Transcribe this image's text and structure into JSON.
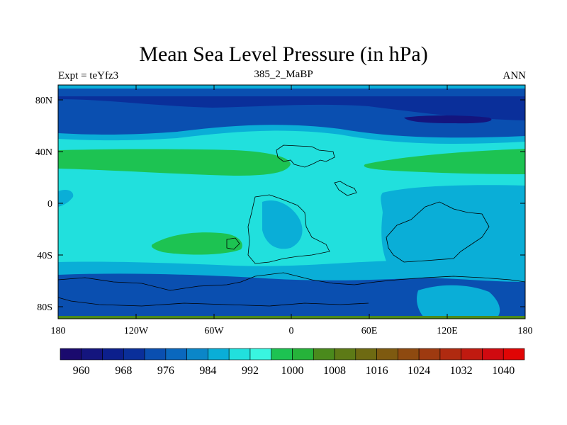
{
  "title": "Mean Sea Level Pressure (in hPa)",
  "left_string": "Expt = teYfz3",
  "center_string": "385_2_MaBP",
  "right_string": "ANN",
  "lat_ticks": [
    "80N",
    "40N",
    "0",
    "40S",
    "80S"
  ],
  "lon_ticks": [
    "180",
    "120W",
    "60W",
    "0",
    "60E",
    "120E",
    "180"
  ],
  "colorbar_labels": [
    "960",
    "968",
    "976",
    "984",
    "992",
    "1000",
    "1008",
    "1016",
    "1024",
    "1032",
    "1040"
  ],
  "colorbar_colors": [
    "#1a0a6e",
    "#14157e",
    "#0c1f8c",
    "#0a2f9a",
    "#0a4fb0",
    "#0a68be",
    "#0b86c8",
    "#0aaed7",
    "#21e0dd",
    "#39f5e0",
    "#1dc352",
    "#26b33a",
    "#4a8a1c",
    "#5d7a16",
    "#6e6a12",
    "#7e5a10",
    "#8e4a10",
    "#9e3a10",
    "#b02a10",
    "#c01a10",
    "#d00a10",
    "#e00505"
  ],
  "map_colors": {
    "c984": "#0a4fb0",
    "c976": "#0a2f9a",
    "c968": "#14157e",
    "c992": "#0aaed7",
    "c1000": "#21e0dd",
    "c1008": "#1dc352",
    "c1016": "#4a8a1c"
  }
}
